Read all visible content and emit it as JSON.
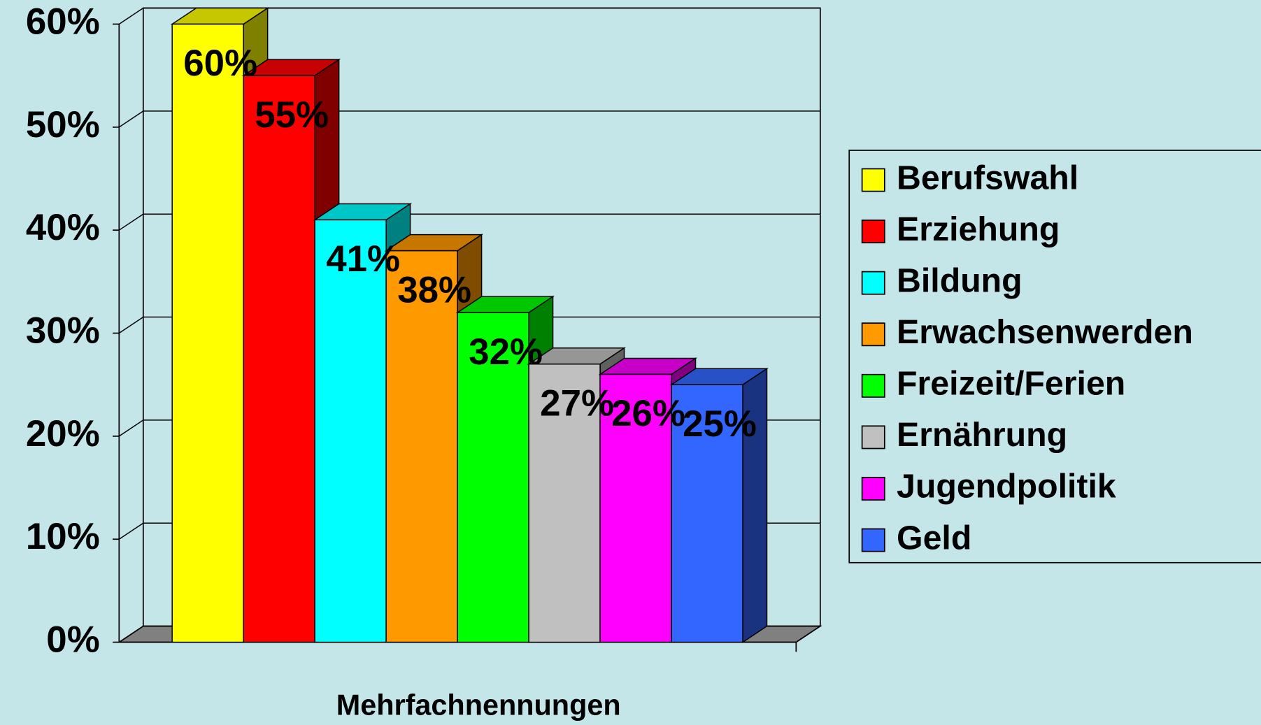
{
  "chart_data": {
    "type": "bar3d",
    "xlabel": "Mehrfachnennungen",
    "categories": [
      null
    ],
    "ylim": [
      0,
      60
    ],
    "yticks": [
      {
        "value": 0,
        "label": "0%"
      },
      {
        "value": 10,
        "label": "10%"
      },
      {
        "value": 20,
        "label": "20%"
      },
      {
        "value": 30,
        "label": "30%"
      },
      {
        "value": 40,
        "label": "40%"
      },
      {
        "value": 50,
        "label": "50%"
      },
      {
        "value": 60,
        "label": "60%"
      }
    ],
    "grid": true,
    "legend": "right",
    "series": [
      {
        "name": "Berufswahl",
        "color": "#ffff00",
        "values": [
          60
        ],
        "value_labels": [
          "60%"
        ]
      },
      {
        "name": "Erziehung",
        "color": "#ff0000",
        "values": [
          55
        ],
        "value_labels": [
          "55%"
        ]
      },
      {
        "name": "Bildung",
        "color": "#00ffff",
        "values": [
          41
        ],
        "value_labels": [
          "41%"
        ]
      },
      {
        "name": "Erwachsenwerden",
        "color": "#ff9900",
        "values": [
          38
        ],
        "value_labels": [
          "38%"
        ]
      },
      {
        "name": "Freizeit/Ferien",
        "color": "#00ff00",
        "values": [
          32
        ],
        "value_labels": [
          "32%"
        ]
      },
      {
        "name": "Ernährung",
        "color": "#c0c0c0",
        "values": [
          27
        ],
        "value_labels": [
          "27%"
        ]
      },
      {
        "name": "Jugendpolitik",
        "color": "#ff00ff",
        "values": [
          26
        ],
        "value_labels": [
          "26%"
        ]
      },
      {
        "name": "Geld",
        "color": "#3366ff",
        "values": [
          25
        ],
        "value_labels": [
          "25%"
        ]
      }
    ]
  }
}
